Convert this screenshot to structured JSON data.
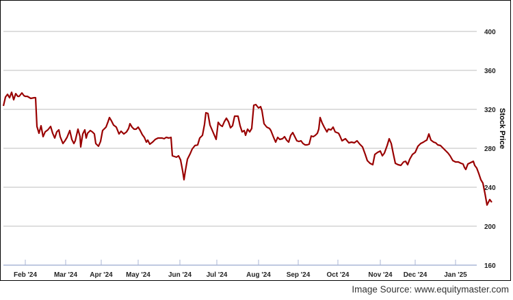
{
  "chart_data": {
    "type": "line",
    "title": "",
    "xlabel": "",
    "ylabel": "Stock Price",
    "ylim": [
      160,
      400
    ],
    "yticks": [
      160,
      200,
      240,
      280,
      320,
      360,
      400
    ],
    "grid": true,
    "legend": null,
    "line_color": "#990000",
    "x_tick_labels": [
      "Feb '24",
      "Mar '24",
      "Apr '24",
      "May '24",
      "Jun '24",
      "Jul '24",
      "Aug '24",
      "Sep '24",
      "Oct '24",
      "Nov '24",
      "Dec '24",
      "Jan '25"
    ],
    "series": [
      {
        "name": "Stock Price",
        "x": [
          "Jan '24 (start)",
          "mid Jan '24",
          "late Jan '24",
          "early Feb '24",
          "mid Feb '24",
          "late Feb '24",
          "early Mar '24",
          "mid Mar '24",
          "late Mar '24",
          "early Apr '24",
          "mid Apr '24",
          "late Apr '24",
          "early May '24",
          "mid May '24",
          "late May '24",
          "early Jun '24",
          "mid Jun '24",
          "late Jun '24",
          "early Jul '24",
          "mid Jul '24",
          "late Jul '24",
          "early Aug '24",
          "mid Aug '24",
          "late Aug '24",
          "early Sep '24",
          "mid Sep '24",
          "late Sep '24",
          "early Oct '24",
          "mid Oct '24",
          "late Oct '24",
          "early Nov '24",
          "mid Nov '24",
          "late Nov '24",
          "early Dec '24",
          "mid Dec '24",
          "late Dec '24",
          "early Jan '25",
          "mid Jan '25",
          "late Jan '25"
        ],
        "values": [
          325,
          335,
          331,
          288,
          300,
          288,
          296,
          285,
          295,
          281,
          308,
          292,
          302,
          290,
          289,
          268,
          248,
          282,
          314,
          305,
          318,
          302,
          323,
          290,
          288,
          285,
          312,
          295,
          282,
          283,
          262,
          280,
          250,
          262,
          275,
          265,
          252,
          248,
          222
        ]
      }
    ]
  },
  "footer": {
    "source": "Image Source: www.equitymaster.com"
  }
}
